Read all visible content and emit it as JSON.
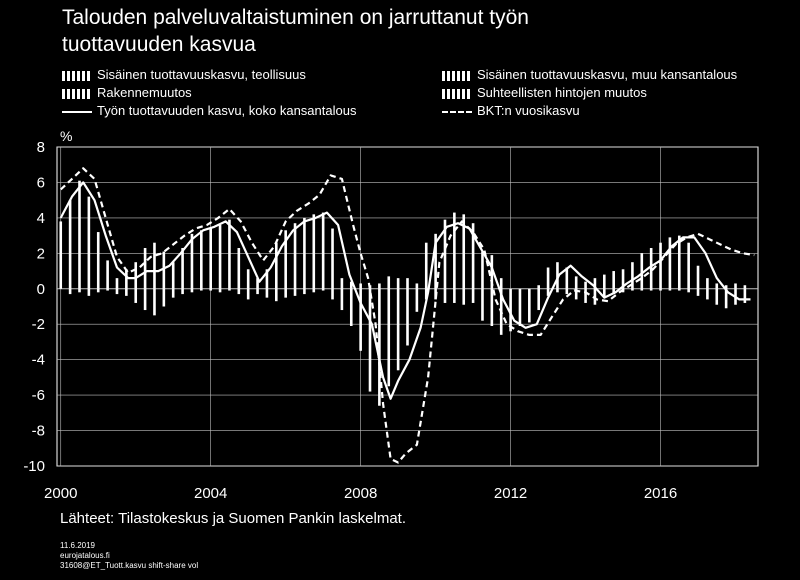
{
  "title_line1": "Talouden palveluvaltaistuminen on jarruttanut työn",
  "title_line2": "tuottavuuden kasvua",
  "legend": {
    "l1": "Sisäinen tuottavuuskasvu, teollisuus",
    "l2": "Sisäinen tuottavuuskasvu, muu kansantalous",
    "l3": "Rakennemuutos",
    "l4": "Suhteellisten hintojen muutos",
    "l5": "Työn tuottavuuden kasvu, koko kansantalous",
    "l6": "BKT:n vuosikasvu"
  },
  "unit": "%",
  "source": "Lähteet: Tilastokeskus ja Suomen Pankin laskelmat.",
  "meta_date": "11.6.2019",
  "meta_site": "eurojatalous.fi",
  "meta_file": "31608@ET_Tuott.kasvu shift-share vol",
  "colors": {
    "background": "#000000",
    "foreground": "#ffffff"
  },
  "chart_data": {
    "type": "bar",
    "xlim": [
      1999.9,
      2018.6
    ],
    "ylim": [
      -10,
      8
    ],
    "yticks": [
      -10,
      -8,
      -6,
      -4,
      -2,
      0,
      2,
      4,
      6,
      8
    ],
    "xticks": [
      2000,
      2004,
      2008,
      2012,
      2016
    ],
    "grid": true,
    "series_bars_pos": {
      "x": [
        2000.0,
        2000.25,
        2000.5,
        2000.75,
        2001.0,
        2001.25,
        2001.5,
        2001.75,
        2002.0,
        2002.25,
        2002.5,
        2002.75,
        2003.0,
        2003.25,
        2003.5,
        2003.75,
        2004.0,
        2004.25,
        2004.5,
        2004.75,
        2005.0,
        2005.25,
        2005.5,
        2005.75,
        2006.0,
        2006.25,
        2006.5,
        2006.75,
        2007.0,
        2007.25,
        2007.5,
        2007.75,
        2008.0,
        2008.25,
        2008.5,
        2008.75,
        2009.0,
        2009.25,
        2009.5,
        2009.75,
        2010.0,
        2010.25,
        2010.5,
        2010.75,
        2011.0,
        2011.25,
        2011.5,
        2011.75,
        2012.0,
        2012.25,
        2012.5,
        2012.75,
        2013.0,
        2013.25,
        2013.5,
        2013.75,
        2014.0,
        2014.25,
        2014.5,
        2014.75,
        2015.0,
        2015.25,
        2015.5,
        2015.75,
        2016.0,
        2016.25,
        2016.5,
        2016.75,
        2017.0,
        2017.25,
        2017.5,
        2017.75,
        2018.0,
        2018.25
      ],
      "values": [
        3.8,
        5.0,
        6.1,
        5.2,
        3.2,
        1.6,
        0.6,
        1.1,
        1.5,
        2.3,
        2.6,
        2.1,
        1.5,
        2.3,
        3.1,
        3.3,
        3.4,
        3.6,
        3.9,
        2.3,
        1.1,
        0.6,
        1.1,
        2.6,
        3.3,
        3.7,
        4.0,
        4.2,
        4.3,
        3.4,
        0.6,
        0.4,
        0.3,
        0.2,
        0.3,
        0.7,
        0.6,
        0.6,
        0.3,
        2.6,
        3.1,
        3.9,
        4.3,
        4.2,
        3.7,
        2.1,
        1.9,
        0.6,
        0.0,
        0.0,
        0.0,
        0.2,
        1.2,
        1.5,
        1.2,
        0.7,
        0.4,
        0.6,
        0.8,
        1.0,
        1.1,
        1.5,
        2.0,
        2.3,
        2.6,
        2.9,
        3.0,
        2.6,
        1.3,
        0.6,
        0.3,
        0.2,
        0.3,
        0.2
      ]
    },
    "series_bars_neg": {
      "values": [
        0.0,
        -0.3,
        -0.2,
        -0.4,
        -0.2,
        -0.1,
        -0.3,
        -0.4,
        -0.8,
        -1.2,
        -1.5,
        -1.0,
        -0.5,
        -0.3,
        -0.2,
        -0.1,
        -0.1,
        -0.2,
        -0.1,
        -0.3,
        -0.6,
        -0.3,
        -0.5,
        -0.7,
        -0.5,
        -0.4,
        -0.3,
        -0.2,
        -0.1,
        -0.6,
        -1.2,
        -2.1,
        -3.5,
        -5.8,
        -6.6,
        -5.5,
        -4.6,
        -3.2,
        -1.3,
        -0.6,
        -0.6,
        -0.8,
        -0.8,
        -0.9,
        -0.8,
        -1.8,
        -2.1,
        -2.6,
        -2.4,
        -2.1,
        -1.9,
        -1.2,
        -0.4,
        -0.2,
        -0.3,
        -0.6,
        -0.8,
        -0.9,
        -0.5,
        -0.3,
        -0.2,
        -0.1,
        -0.1,
        -0.1,
        -0.1,
        -0.1,
        -0.1,
        -0.2,
        -0.4,
        -0.6,
        -0.9,
        -1.1,
        -0.9,
        -0.8
      ]
    },
    "series_productivity": {
      "x": [
        2000.0,
        2000.3,
        2000.6,
        2000.9,
        2001.2,
        2001.5,
        2001.8,
        2002.0,
        2002.3,
        2002.6,
        2002.9,
        2003.2,
        2003.5,
        2003.8,
        2004.1,
        2004.4,
        2004.7,
        2005.0,
        2005.3,
        2005.6,
        2005.9,
        2006.2,
        2006.5,
        2006.8,
        2007.1,
        2007.4,
        2007.7,
        2008.0,
        2008.3,
        2008.6,
        2008.8,
        2009.0,
        2009.3,
        2009.6,
        2009.8,
        2010.0,
        2010.3,
        2010.6,
        2010.9,
        2011.2,
        2011.5,
        2011.8,
        2012.1,
        2012.4,
        2012.7,
        2013.0,
        2013.3,
        2013.6,
        2013.9,
        2014.2,
        2014.5,
        2014.8,
        2015.1,
        2015.4,
        2015.7,
        2016.0,
        2016.3,
        2016.6,
        2016.9,
        2017.2,
        2017.5,
        2017.8,
        2018.1,
        2018.4
      ],
      "values": [
        4.0,
        5.2,
        6.0,
        5.0,
        3.0,
        1.2,
        0.6,
        0.6,
        1.0,
        1.0,
        1.3,
        2.0,
        2.8,
        3.3,
        3.5,
        3.8,
        3.2,
        1.8,
        0.4,
        1.2,
        2.4,
        3.3,
        3.8,
        4.0,
        4.3,
        3.6,
        0.8,
        -0.8,
        -2.0,
        -5.0,
        -6.2,
        -5.2,
        -4.0,
        -2.2,
        -0.2,
        2.6,
        3.5,
        3.7,
        3.4,
        2.3,
        1.2,
        -0.6,
        -1.8,
        -2.2,
        -2.0,
        -0.5,
        0.8,
        1.3,
        0.7,
        0.2,
        -0.5,
        -0.2,
        0.3,
        0.7,
        1.2,
        1.6,
        2.4,
        2.9,
        2.9,
        2.0,
        0.6,
        -0.2,
        -0.6,
        -0.6
      ]
    },
    "series_gdp": {
      "x": [
        2000.0,
        2000.3,
        2000.6,
        2000.9,
        2001.2,
        2001.5,
        2001.8,
        2002.1,
        2002.4,
        2002.7,
        2003.0,
        2003.3,
        2003.6,
        2003.9,
        2004.2,
        2004.5,
        2004.8,
        2005.1,
        2005.4,
        2005.7,
        2006.0,
        2006.3,
        2006.6,
        2006.9,
        2007.2,
        2007.5,
        2007.8,
        2008.0,
        2008.2,
        2008.4,
        2008.6,
        2008.8,
        2009.0,
        2009.2,
        2009.5,
        2009.8,
        2010.1,
        2010.4,
        2010.7,
        2011.0,
        2011.3,
        2011.6,
        2011.9,
        2012.2,
        2012.5,
        2012.8,
        2013.1,
        2013.4,
        2013.7,
        2014.0,
        2014.3,
        2014.6,
        2014.9,
        2015.2,
        2015.5,
        2015.8,
        2016.1,
        2016.4,
        2016.7,
        2017.0,
        2017.3,
        2017.6,
        2017.9,
        2018.2,
        2018.5
      ],
      "values": [
        5.6,
        6.2,
        6.8,
        6.2,
        4.0,
        1.8,
        0.9,
        1.2,
        1.8,
        2.0,
        2.5,
        3.0,
        3.4,
        3.6,
        4.0,
        4.5,
        3.8,
        2.6,
        1.6,
        2.4,
        3.8,
        4.4,
        4.8,
        5.3,
        6.4,
        6.2,
        3.6,
        2.0,
        0.6,
        -2.0,
        -6.5,
        -9.6,
        -9.8,
        -9.3,
        -8.8,
        -5.0,
        1.5,
        3.0,
        3.8,
        3.2,
        2.2,
        -0.6,
        -2.0,
        -2.4,
        -2.6,
        -2.6,
        -1.6,
        -0.6,
        -0.1,
        -0.2,
        -0.6,
        -0.7,
        -0.2,
        0.2,
        0.6,
        1.1,
        1.8,
        2.5,
        2.9,
        3.1,
        2.8,
        2.5,
        2.2,
        2.0,
        1.9
      ]
    }
  }
}
